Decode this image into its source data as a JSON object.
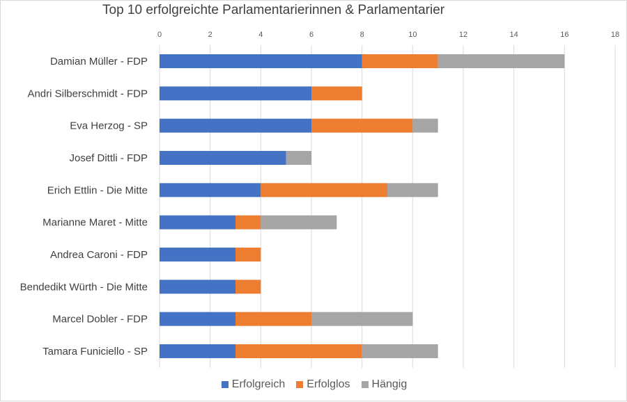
{
  "chart_data": {
    "type": "bar",
    "orientation": "horizontal",
    "stacked": true,
    "title": "Top 10 erfolgreichte Parlamentarierinnen & Parlamentarier",
    "categories": [
      "Damian Müller - FDP",
      "Andri Silberschmidt - FDP",
      "Eva Herzog - SP",
      "Josef Dittli - FDP",
      "Erich Ettlin - Die Mitte",
      "Marianne Maret - Mitte",
      "Andrea Caroni - FDP",
      "Bendedikt Würth - Die Mitte",
      "Marcel Dobler - FDP",
      "Tamara Funiciello - SP"
    ],
    "series": [
      {
        "name": "Erfolgreich",
        "color": "#4472C4",
        "values": [
          8,
          6,
          6,
          5,
          4,
          3,
          3,
          3,
          3,
          3
        ]
      },
      {
        "name": "Erfolglos",
        "color": "#ED7D31",
        "values": [
          3,
          2,
          4,
          0,
          5,
          1,
          1,
          1,
          3,
          5
        ]
      },
      {
        "name": "Hängig",
        "color": "#A5A5A5",
        "values": [
          5,
          0,
          1,
          1,
          2,
          3,
          0,
          0,
          4,
          3
        ]
      }
    ],
    "xlim": [
      0,
      18
    ],
    "xticks": [
      "0",
      "2",
      "4",
      "6",
      "8",
      "10",
      "12",
      "14",
      "16",
      "18"
    ],
    "xaxis_position": "top",
    "grid": true,
    "legend_position": "bottom"
  }
}
